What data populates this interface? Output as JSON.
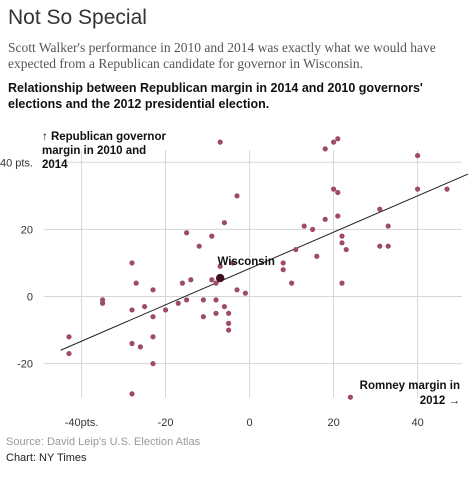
{
  "header": {
    "title": "Not So Special",
    "subtitle": "Scott Walker's performance in 2010 and 2014 was exactly what we would have expected from a Republican candidate for governor in Wisconsin.",
    "headline": "Relationship between Republican margin in 2014 and 2010 governors' elections and the 2012 presidential election."
  },
  "footer": {
    "source": "Source: David Leip's U.S. Election Atlas",
    "credit": "Chart: NY Times"
  },
  "colors": {
    "points": "#9e4a6a",
    "highlight": "#3d0f1f",
    "grid": "#d6d6d6",
    "trend": "#222222"
  },
  "chart_data": {
    "type": "scatter",
    "ylabel": [
      "↑ Republican governor",
      "margin in 2010 and",
      "2014"
    ],
    "xlabel": [
      "Romney margin in",
      "2012 →"
    ],
    "xlim": [
      -48,
      52
    ],
    "ylim": [
      -35,
      52
    ],
    "x_ticks": [
      {
        "value": -40,
        "label": "-40pts."
      },
      {
        "value": -20,
        "label": "-20"
      },
      {
        "value": 0,
        "label": "0"
      },
      {
        "value": 20,
        "label": "20"
      },
      {
        "value": 40,
        "label": "40"
      }
    ],
    "y_ticks": [
      {
        "value": 40,
        "label": "40 pts."
      },
      {
        "value": 20,
        "label": "20"
      },
      {
        "value": 0,
        "label": "0"
      },
      {
        "value": -20,
        "label": "-20"
      }
    ],
    "grid": true,
    "trend_line": {
      "x": [
        -45,
        52
      ],
      "y": [
        -16,
        36.5
      ]
    },
    "highlight": {
      "label": "Wisconsin",
      "x": -7,
      "y": 5.5
    },
    "points": [
      {
        "x": -43,
        "y": -12
      },
      {
        "x": -43,
        "y": -17
      },
      {
        "x": -35,
        "y": -1
      },
      {
        "x": -35,
        "y": -2
      },
      {
        "x": -28,
        "y": 10
      },
      {
        "x": -28,
        "y": -4
      },
      {
        "x": -28,
        "y": -14
      },
      {
        "x": -28,
        "y": -29
      },
      {
        "x": -27,
        "y": 4
      },
      {
        "x": -26,
        "y": -15
      },
      {
        "x": -25,
        "y": -3
      },
      {
        "x": -23,
        "y": 2
      },
      {
        "x": -23,
        "y": -6
      },
      {
        "x": -23,
        "y": -12
      },
      {
        "x": -23,
        "y": -20
      },
      {
        "x": -20,
        "y": -4
      },
      {
        "x": -17,
        "y": -2
      },
      {
        "x": -16,
        "y": 4
      },
      {
        "x": -15,
        "y": -1
      },
      {
        "x": -15,
        "y": 19
      },
      {
        "x": -14,
        "y": 5
      },
      {
        "x": -12,
        "y": 15
      },
      {
        "x": -11,
        "y": -1
      },
      {
        "x": -11,
        "y": -6
      },
      {
        "x": -9,
        "y": 5
      },
      {
        "x": -8,
        "y": -1
      },
      {
        "x": -8,
        "y": -5
      },
      {
        "x": -8,
        "y": 4
      },
      {
        "x": -7,
        "y": 9
      },
      {
        "x": -7,
        "y": 46
      },
      {
        "x": -6,
        "y": 22
      },
      {
        "x": -6,
        "y": -3
      },
      {
        "x": -5,
        "y": -5
      },
      {
        "x": -5,
        "y": -8
      },
      {
        "x": -5,
        "y": -10
      },
      {
        "x": -4,
        "y": 10
      },
      {
        "x": -3,
        "y": 2
      },
      {
        "x": -3,
        "y": 30
      },
      {
        "x": -9,
        "y": 18
      },
      {
        "x": -1,
        "y": 1
      },
      {
        "x": 8,
        "y": 10
      },
      {
        "x": 8,
        "y": 8
      },
      {
        "x": 10,
        "y": 4
      },
      {
        "x": 11,
        "y": 14
      },
      {
        "x": 13,
        "y": 21
      },
      {
        "x": 15,
        "y": 20
      },
      {
        "x": 16,
        "y": 12
      },
      {
        "x": 18,
        "y": 23
      },
      {
        "x": 18,
        "y": 44
      },
      {
        "x": 20,
        "y": 46
      },
      {
        "x": 20,
        "y": 32
      },
      {
        "x": 21,
        "y": 47
      },
      {
        "x": 21,
        "y": 31
      },
      {
        "x": 21,
        "y": 24
      },
      {
        "x": 22,
        "y": 18
      },
      {
        "x": 22,
        "y": 16
      },
      {
        "x": 22,
        "y": 4
      },
      {
        "x": 23,
        "y": 14
      },
      {
        "x": 24,
        "y": -30
      },
      {
        "x": 31,
        "y": 26
      },
      {
        "x": 31,
        "y": 15
      },
      {
        "x": 33,
        "y": 21
      },
      {
        "x": 33,
        "y": 15
      },
      {
        "x": 40,
        "y": 42
      },
      {
        "x": 40,
        "y": 32
      },
      {
        "x": 47,
        "y": 32
      }
    ]
  }
}
